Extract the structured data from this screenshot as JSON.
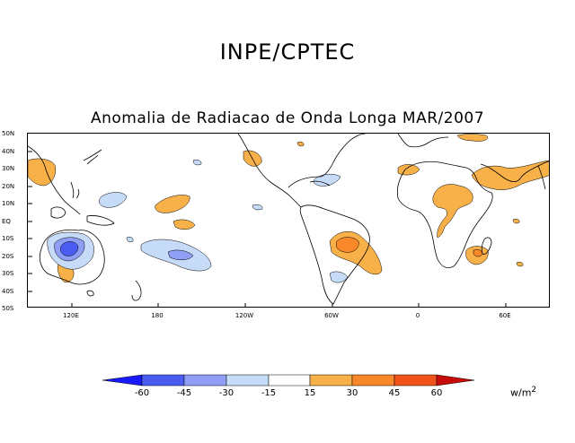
{
  "header": {
    "title": "INPE/CPTEC"
  },
  "map": {
    "title": "Anomalia de Radiacao de Onda Longa MAR/2007",
    "lat_labels": [
      "50N",
      "40N",
      "30N",
      "20N",
      "10N",
      "EQ",
      "10S",
      "20S",
      "30S",
      "40S",
      "50S"
    ],
    "lon_labels": [
      "120E",
      "180",
      "120W",
      "60W",
      "0",
      "60E"
    ]
  },
  "legend": {
    "labels": [
      "-60",
      "-45",
      "-30",
      "-15",
      "15",
      "30",
      "45",
      "60"
    ],
    "units": "w/m",
    "units_exp": "2",
    "colors": [
      "#1a1aff",
      "#4a5cf0",
      "#8f9ff5",
      "#c6dbf7",
      "#ffffff",
      "#f8b048",
      "#f8882a",
      "#f0521a",
      "#c80c0c"
    ]
  }
}
